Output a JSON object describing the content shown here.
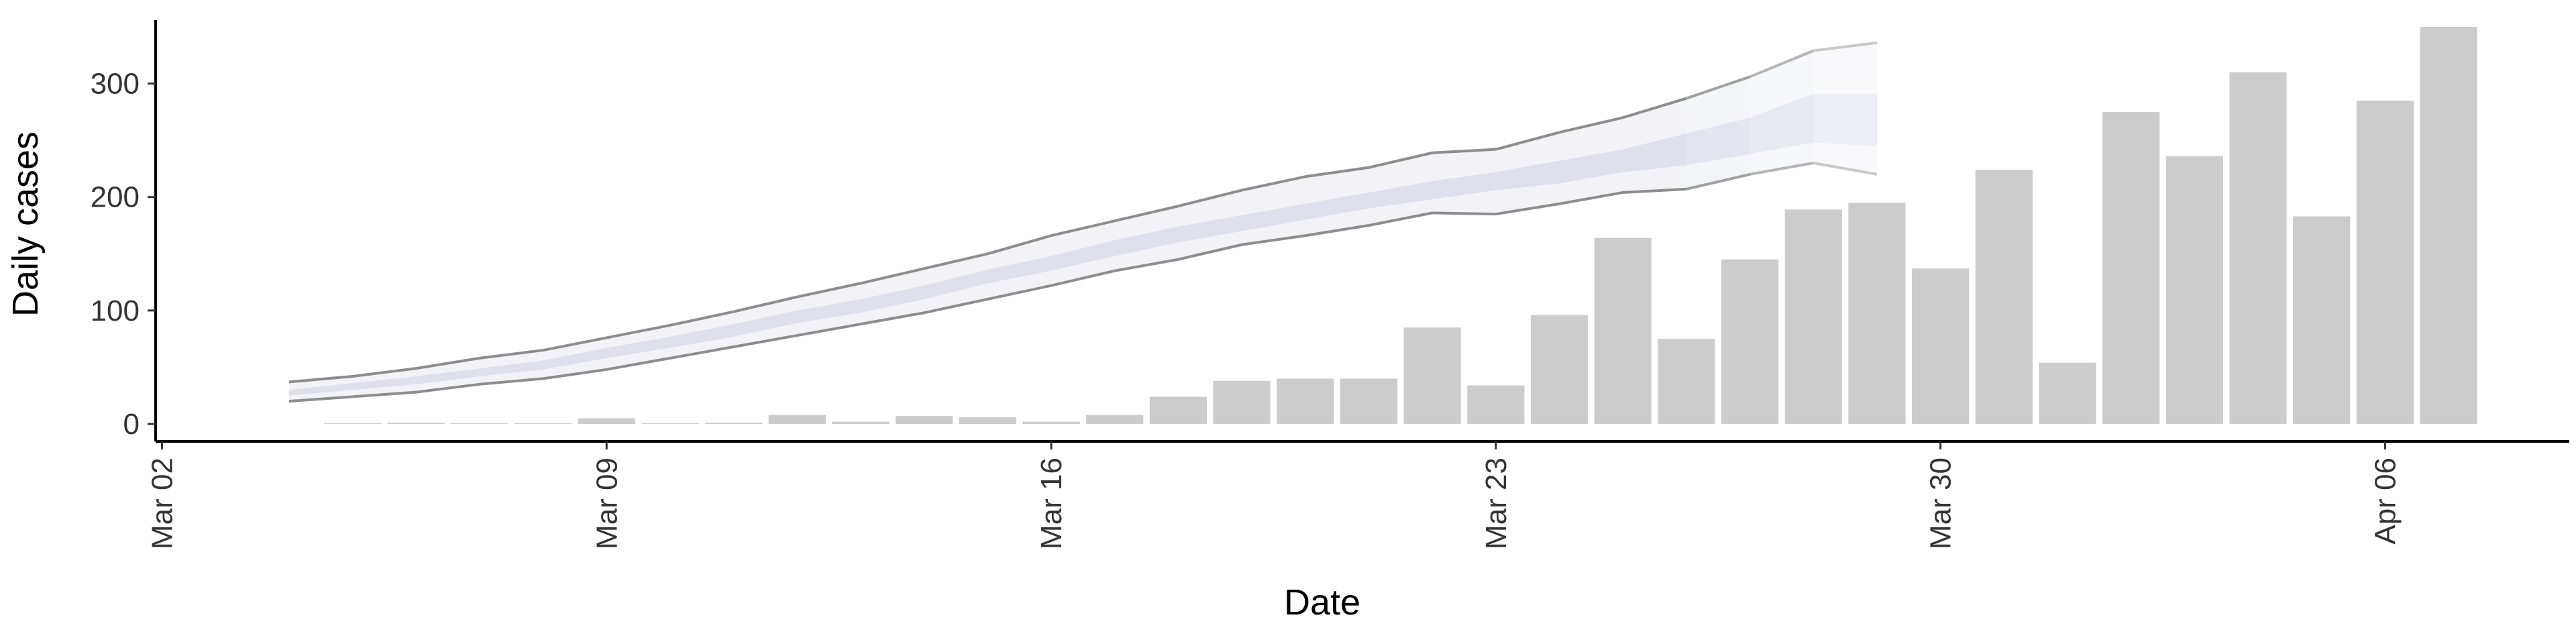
{
  "chart_data": {
    "type": "bar",
    "xlabel": "Date",
    "ylabel": "Daily cases",
    "ylim": [
      0,
      350
    ],
    "y_ticks": [
      0,
      100,
      200,
      300
    ],
    "x_ticks": [
      {
        "label": "Mar 02",
        "date": "2020-03-02"
      },
      {
        "label": "Mar 09",
        "date": "2020-03-09"
      },
      {
        "label": "Mar 16",
        "date": "2020-03-16"
      },
      {
        "label": "Mar 23",
        "date": "2020-03-23"
      },
      {
        "label": "Mar 30",
        "date": "2020-03-30"
      },
      {
        "label": "Apr 06",
        "date": "2020-04-06"
      }
    ],
    "x_range": [
      "2020-03-02",
      "2020-04-09"
    ],
    "grid": false,
    "series": [
      {
        "kind": "bar",
        "color": "#cccccc",
        "dates": [
          "2020-03-05",
          "2020-03-06",
          "2020-03-07",
          "2020-03-08",
          "2020-03-09",
          "2020-03-10",
          "2020-03-11",
          "2020-03-12",
          "2020-03-13",
          "2020-03-14",
          "2020-03-15",
          "2020-03-16",
          "2020-03-17",
          "2020-03-18",
          "2020-03-19",
          "2020-03-20",
          "2020-03-21",
          "2020-03-22",
          "2020-03-23",
          "2020-03-24",
          "2020-03-25",
          "2020-03-26",
          "2020-03-27",
          "2020-03-28",
          "2020-03-29",
          "2020-03-30",
          "2020-03-31",
          "2020-04-01",
          "2020-04-02",
          "2020-04-03",
          "2020-04-04",
          "2020-04-05",
          "2020-04-06",
          "2020-04-07"
        ],
        "values": [
          0,
          1,
          0,
          0,
          5,
          0,
          1,
          8,
          2,
          7,
          6,
          2,
          8,
          24,
          38,
          40,
          40,
          85,
          34,
          96,
          164,
          75,
          145,
          189,
          195,
          137,
          224,
          54,
          275,
          236,
          310,
          183,
          285,
          350
        ]
      },
      {
        "kind": "band",
        "color": "#cfd2e3",
        "dates": [
          "2020-03-04",
          "2020-03-05",
          "2020-03-06",
          "2020-03-07",
          "2020-03-08",
          "2020-03-09",
          "2020-03-10",
          "2020-03-11",
          "2020-03-12",
          "2020-03-13",
          "2020-03-14",
          "2020-03-15",
          "2020-03-16",
          "2020-03-17",
          "2020-03-18",
          "2020-03-19",
          "2020-03-20",
          "2020-03-21",
          "2020-03-22",
          "2020-03-23",
          "2020-03-24",
          "2020-03-25",
          "2020-03-26",
          "2020-03-27",
          "2020-03-28",
          "2020-03-29"
        ],
        "outer_lower": [
          20,
          24,
          28,
          35,
          40,
          48,
          58,
          68,
          78,
          88,
          98,
          110,
          122,
          135,
          145,
          158,
          166,
          175,
          186,
          185,
          194,
          204,
          207,
          220,
          230,
          220
        ],
        "outer_upper": [
          37,
          42,
          49,
          58,
          65,
          76,
          87,
          99,
          112,
          124,
          137,
          150,
          166,
          179,
          192,
          206,
          218,
          226,
          239,
          242,
          257,
          270,
          287,
          306,
          329,
          336
        ],
        "inner_lower": [
          25,
          30,
          35,
          42,
          48,
          58,
          67,
          77,
          89,
          98,
          110,
          124,
          135,
          148,
          160,
          170,
          180,
          190,
          198,
          206,
          212,
          222,
          228,
          238,
          248,
          245
        ],
        "inner_upper": [
          30,
          36,
          42,
          49,
          56,
          67,
          77,
          88,
          100,
          110,
          122,
          136,
          148,
          162,
          174,
          184,
          194,
          204,
          214,
          222,
          232,
          242,
          256,
          270,
          291,
          291
        ]
      }
    ]
  }
}
